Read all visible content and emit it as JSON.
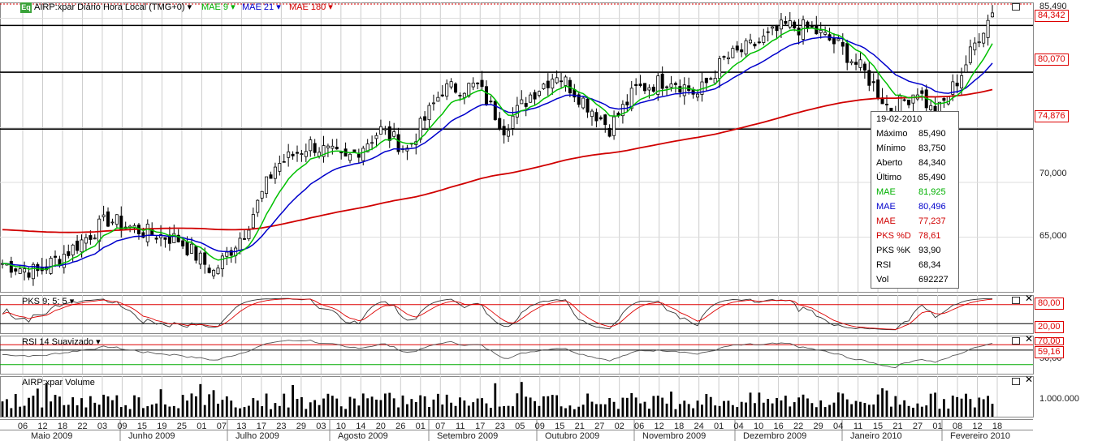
{
  "header": {
    "logo": "Eq",
    "title": "AIRP:xpar Diário Hora Local (TMG+0)",
    "ma_labels": [
      {
        "text": "MAE 9",
        "color": "#00b000"
      },
      {
        "text": "MAE 21",
        "color": "#0000cc"
      },
      {
        "text": "MAE 180",
        "color": "#d00000"
      }
    ]
  },
  "panels": {
    "pks_title": "PKS 9; 5; 5",
    "rsi_title": "RSI 14 Suavizado",
    "vol_title": "AIRP:xpar Volume"
  },
  "price_axis": {
    "ticks": [
      "85,490",
      "70,000",
      "65,000"
    ],
    "boxes": [
      "84,342",
      "80,070",
      "74,876"
    ]
  },
  "pks_axis": {
    "boxes": [
      "80,00",
      "20,00"
    ]
  },
  "rsi_axis": {
    "boxes": [
      "70,00",
      "59,16"
    ],
    "ticks": [
      "50,00"
    ]
  },
  "vol_axis": {
    "ticks": [
      "1.000.000"
    ]
  },
  "tooltip": {
    "date": "19-02-2010",
    "rows": [
      {
        "label": "Máximo",
        "value": "85,490",
        "color": "#000"
      },
      {
        "label": "Mínimo",
        "value": "83,750",
        "color": "#000"
      },
      {
        "label": "Aberto",
        "value": "84,340",
        "color": "#000"
      },
      {
        "label": "Último",
        "value": "85,490",
        "color": "#000"
      },
      {
        "label": "MAE",
        "value": "81,925",
        "color": "#00b000"
      },
      {
        "label": "MAE",
        "value": "80,496",
        "color": "#0000cc"
      },
      {
        "label": "MAE",
        "value": "77,237",
        "color": "#d00000"
      },
      {
        "label": "PKS %D",
        "value": "78,61",
        "color": "#d00000"
      },
      {
        "label": "PKS %K",
        "value": "93,90",
        "color": "#000"
      },
      {
        "label": "RSI",
        "value": "68,34",
        "color": "#000"
      },
      {
        "label": "Vol",
        "value": "692227",
        "color": "#000"
      }
    ]
  },
  "x_axis": {
    "day_labels": [
      "06",
      "12",
      "18",
      "22",
      "03",
      "09",
      "15",
      "19",
      "25",
      "01",
      "07",
      "13",
      "17",
      "23",
      "29",
      "03",
      "10",
      "14",
      "20",
      "26",
      "01",
      "07",
      "11",
      "17",
      "23",
      "05",
      "09",
      "15",
      "21",
      "27",
      "02",
      "06",
      "12",
      "18",
      "24",
      "01",
      "04",
      "10",
      "16",
      "22",
      "29",
      "04",
      "11",
      "15",
      "21",
      "27",
      "01",
      "08",
      "12",
      "18"
    ],
    "months": [
      "Maio 2009",
      "Junho 2009",
      "Julho 2009",
      "Agosto 2009",
      "Setembro 2009",
      "Outubro 2009",
      "Novembro 2009",
      "Dezembro 2009",
      "Janeiro 2010",
      "Fevereiro 2010"
    ]
  },
  "chart_data": {
    "type": "candlestick",
    "x_range": [
      "2009-05-01",
      "2010-02-19"
    ],
    "y_range": [
      60.0,
      86.0
    ],
    "horizontal_levels": [
      84.342,
      80.07,
      74.876
    ],
    "price_anchors": [
      {
        "i": 0,
        "close": 62.6
      },
      {
        "i": 8,
        "close": 61.8
      },
      {
        "i": 16,
        "close": 64.0
      },
      {
        "i": 24,
        "close": 66.6
      },
      {
        "i": 32,
        "close": 65.5
      },
      {
        "i": 40,
        "close": 64.8
      },
      {
        "i": 48,
        "close": 61.8
      },
      {
        "i": 55,
        "close": 65.5
      },
      {
        "i": 62,
        "close": 71.5
      },
      {
        "i": 70,
        "close": 73.5
      },
      {
        "i": 78,
        "close": 72.0
      },
      {
        "i": 86,
        "close": 74.8
      },
      {
        "i": 92,
        "close": 73.0
      },
      {
        "i": 100,
        "close": 78.5
      },
      {
        "i": 108,
        "close": 78.8
      },
      {
        "i": 114,
        "close": 75.0
      },
      {
        "i": 120,
        "close": 78.0
      },
      {
        "i": 126,
        "close": 80.0
      },
      {
        "i": 132,
        "close": 77.5
      },
      {
        "i": 138,
        "close": 75.0
      },
      {
        "i": 144,
        "close": 78.5
      },
      {
        "i": 152,
        "close": 79.5
      },
      {
        "i": 158,
        "close": 78.0
      },
      {
        "i": 164,
        "close": 81.2
      },
      {
        "i": 172,
        "close": 82.8
      },
      {
        "i": 178,
        "close": 84.3
      },
      {
        "i": 184,
        "close": 84.0
      },
      {
        "i": 190,
        "close": 82.5
      },
      {
        "i": 196,
        "close": 80.0
      },
      {
        "i": 202,
        "close": 76.5
      },
      {
        "i": 208,
        "close": 78.5
      },
      {
        "i": 212,
        "close": 76.0
      },
      {
        "i": 218,
        "close": 80.0
      },
      {
        "i": 222,
        "close": 83.5
      },
      {
        "i": 225,
        "close": 85.49
      }
    ],
    "last_bar": {
      "date": "2010-02-19",
      "high": 85.49,
      "low": 83.75,
      "open": 84.34,
      "close": 85.49,
      "volume": 692227
    },
    "indicators": {
      "mae9": 81.925,
      "mae21": 80.496,
      "mae180": 77.237,
      "pks_d": 78.61,
      "pks_k": 93.9,
      "rsi": 68.34,
      "pks_levels": [
        80,
        20
      ],
      "rsi_levels": [
        70,
        30
      ]
    },
    "series_colors": {
      "mae9": "#00c000",
      "mae21": "#0000cc",
      "mae180": "#d00000"
    },
    "grid": true
  }
}
